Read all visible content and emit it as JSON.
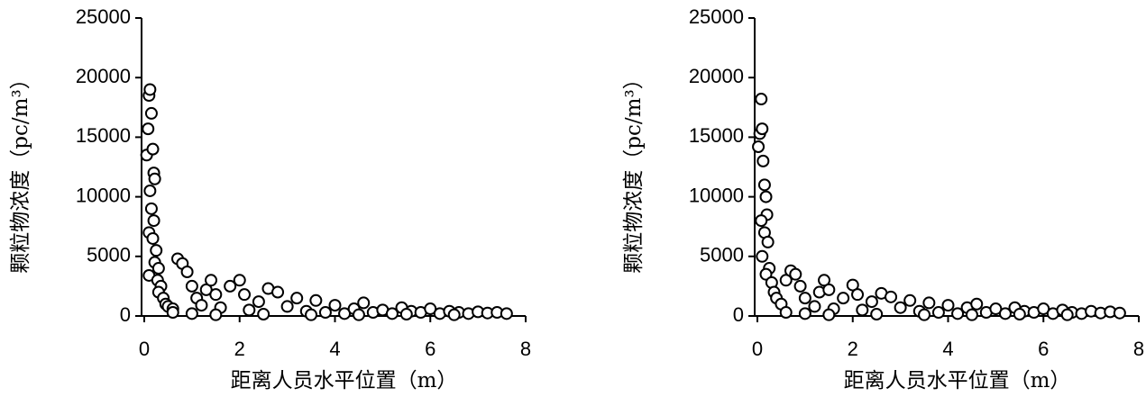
{
  "chart_data": [
    {
      "type": "scatter",
      "ylabel": "颗粒物浓度（pc/m³）",
      "xlabel": "距离人员水平位置（m）",
      "color": "#ffffff",
      "edgecolor": "#000000",
      "xlim": [
        0,
        8
      ],
      "xticks": [
        0,
        2,
        4,
        6,
        8
      ],
      "ylim": [
        0,
        25000
      ],
      "yticks": [
        0,
        5000,
        10000,
        15000,
        20000,
        25000
      ],
      "grid": false,
      "x": [
        0.05,
        0.08,
        0.1,
        0.12,
        0.15,
        0.18,
        0.2,
        0.22,
        0.12,
        0.15,
        0.2,
        0.1,
        0.18,
        0.25,
        0.22,
        0.3,
        0.1,
        0.28,
        0.35,
        0.3,
        0.4,
        0.45,
        0.5,
        0.6,
        0.7,
        0.8,
        0.9,
        1.0,
        1.1,
        1.2,
        1.3,
        1.4,
        1.5,
        1.6,
        1.8,
        2.0,
        2.1,
        2.2,
        2.4,
        2.6,
        2.8,
        3.0,
        3.2,
        3.4,
        3.6,
        3.8,
        4.0,
        4.2,
        4.4,
        4.6,
        4.8,
        5.0,
        5.2,
        5.4,
        5.6,
        5.8,
        6.0,
        6.2,
        6.4,
        6.6,
        6.8,
        7.0,
        7.2,
        7.4,
        7.6,
        0.6,
        1.0,
        1.5,
        2.5,
        3.5,
        4.5,
        5.5,
        6.5
      ],
      "values": [
        13500,
        15700,
        18500,
        19000,
        17000,
        14000,
        12000,
        11500,
        10500,
        9000,
        8000,
        7000,
        6500,
        5500,
        4500,
        4000,
        3400,
        3000,
        2500,
        2000,
        1500,
        1000,
        800,
        600,
        4800,
        4400,
        3700,
        2500,
        1500,
        900,
        2200,
        3000,
        1800,
        700,
        2500,
        3000,
        1800,
        500,
        1200,
        2300,
        2000,
        800,
        1500,
        400,
        1300,
        300,
        900,
        200,
        600,
        1100,
        300,
        500,
        200,
        700,
        400,
        300,
        600,
        200,
        400,
        300,
        200,
        350,
        250,
        300,
        200,
        300,
        200,
        100,
        150,
        100,
        100,
        150,
        100
      ]
    },
    {
      "type": "scatter",
      "ylabel": "颗粒物浓度（pc/m³）",
      "xlabel": "距离人员水平位置（m）",
      "color": "#ffffff",
      "edgecolor": "#000000",
      "xlim": [
        0,
        8
      ],
      "xticks": [
        0,
        2,
        4,
        6,
        8
      ],
      "ylim": [
        0,
        25000
      ],
      "yticks": [
        0,
        5000,
        10000,
        15000,
        20000,
        25000
      ],
      "grid": false,
      "x": [
        0.02,
        0.05,
        0.08,
        0.1,
        0.12,
        0.15,
        0.18,
        0.2,
        0.08,
        0.15,
        0.22,
        0.1,
        0.25,
        0.18,
        0.3,
        0.35,
        0.4,
        0.5,
        0.6,
        0.7,
        0.8,
        0.9,
        1.0,
        1.2,
        1.3,
        1.4,
        1.5,
        1.6,
        1.8,
        2.0,
        2.1,
        2.2,
        2.4,
        2.6,
        2.8,
        3.0,
        3.2,
        3.4,
        3.6,
        3.8,
        4.0,
        4.2,
        4.4,
        4.6,
        4.8,
        5.0,
        5.2,
        5.4,
        5.6,
        5.8,
        6.0,
        6.2,
        6.4,
        6.6,
        6.8,
        7.0,
        7.2,
        7.4,
        7.6,
        0.6,
        1.0,
        1.5,
        2.5,
        3.5,
        4.5,
        5.5,
        6.5
      ],
      "values": [
        14200,
        15300,
        18200,
        15700,
        13000,
        11000,
        10000,
        8500,
        8000,
        7000,
        6200,
        5000,
        4000,
        3500,
        2800,
        2000,
        1500,
        1000,
        3000,
        3800,
        3500,
        2500,
        1500,
        800,
        2000,
        3000,
        2200,
        600,
        1500,
        2600,
        1800,
        500,
        1200,
        1900,
        1600,
        700,
        1300,
        400,
        1100,
        300,
        900,
        200,
        700,
        1000,
        300,
        600,
        200,
        700,
        400,
        300,
        600,
        200,
        500,
        300,
        200,
        400,
        250,
        350,
        250,
        300,
        200,
        100,
        150,
        100,
        100,
        150,
        100
      ]
    }
  ]
}
